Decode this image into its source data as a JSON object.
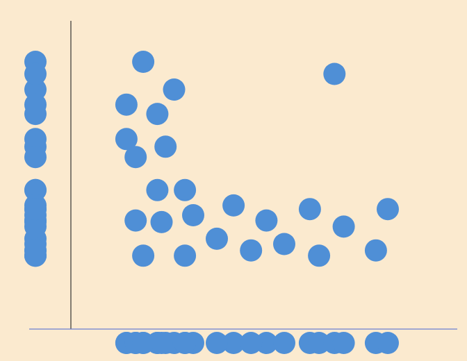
{
  "colors": {
    "background": "#fbeacf",
    "point": "#4f8fd6",
    "y_axis_line": "#333333",
    "x_axis_line": "#6a7fd0"
  },
  "chart_data": {
    "type": "scatter",
    "title": "",
    "xlabel": "",
    "ylabel": "",
    "grid": false,
    "legend": "none",
    "xlim": [
      0,
      100
    ],
    "ylim": [
      0,
      100
    ],
    "rug": {
      "x_marginal": true,
      "y_marginal": true
    },
    "series": [
      {
        "points": [
          {
            "x": 14.6,
            "y": 91.6
          },
          {
            "x": 24.0,
            "y": 81.1
          },
          {
            "x": 9.5,
            "y": 75.4
          },
          {
            "x": 18.9,
            "y": 71.9
          },
          {
            "x": 9.5,
            "y": 62.4
          },
          {
            "x": 21.4,
            "y": 59.5
          },
          {
            "x": 12.3,
            "y": 55.6
          },
          {
            "x": 18.9,
            "y": 43.1
          },
          {
            "x": 27.3,
            "y": 43.1
          },
          {
            "x": 12.3,
            "y": 31.6
          },
          {
            "x": 20.2,
            "y": 31.0
          },
          {
            "x": 29.8,
            "y": 33.6
          },
          {
            "x": 14.6,
            "y": 18.3
          },
          {
            "x": 27.3,
            "y": 18.3
          },
          {
            "x": 42.1,
            "y": 37.3
          },
          {
            "x": 37.0,
            "y": 24.7
          },
          {
            "x": 52.1,
            "y": 31.6
          },
          {
            "x": 47.4,
            "y": 20.3
          },
          {
            "x": 57.5,
            "y": 22.7
          },
          {
            "x": 65.3,
            "y": 35.9
          },
          {
            "x": 68.1,
            "y": 18.3
          },
          {
            "x": 72.8,
            "y": 87.0
          },
          {
            "x": 75.6,
            "y": 29.3
          },
          {
            "x": 85.4,
            "y": 20.3
          },
          {
            "x": 89.0,
            "y": 35.9
          }
        ]
      }
    ]
  }
}
